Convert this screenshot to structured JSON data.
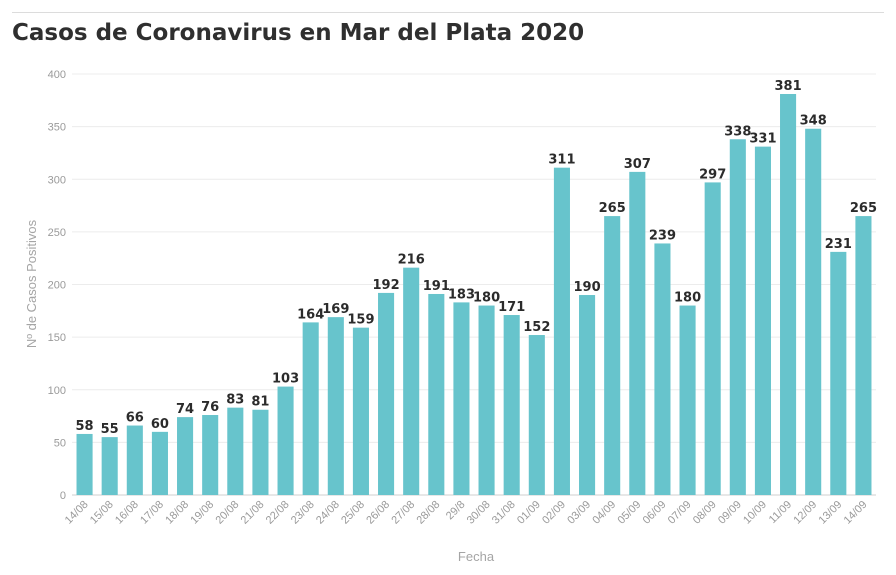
{
  "chart_data": {
    "type": "bar",
    "title": "Casos de Coronavirus en Mar del Plata 2020",
    "xlabel": "Fecha",
    "ylabel": "Nº de Casos Positivos",
    "ylim": [
      0,
      400
    ],
    "yticks": [
      0,
      50,
      100,
      150,
      200,
      250,
      300,
      350,
      400
    ],
    "grid": true,
    "bar_color": "#67c4cc",
    "categories": [
      "14/08",
      "15/08",
      "16/08",
      "17/08",
      "18/08",
      "19/08",
      "20/08",
      "21/08",
      "22/08",
      "23/08",
      "24/08",
      "25/08",
      "26/08",
      "27/08",
      "28/08",
      "29/8",
      "30/08",
      "31/08",
      "01/09",
      "02/09",
      "03/09",
      "04/09",
      "05/09",
      "06/09",
      "07/09",
      "08/09",
      "09/09",
      "10/09",
      "11/09",
      "12/09",
      "13/09",
      "14/09"
    ],
    "values": [
      58,
      55,
      66,
      60,
      74,
      76,
      83,
      81,
      103,
      164,
      169,
      159,
      192,
      216,
      191,
      183,
      180,
      171,
      152,
      311,
      190,
      265,
      307,
      239,
      180,
      297,
      338,
      331,
      381,
      348,
      231,
      265
    ]
  }
}
